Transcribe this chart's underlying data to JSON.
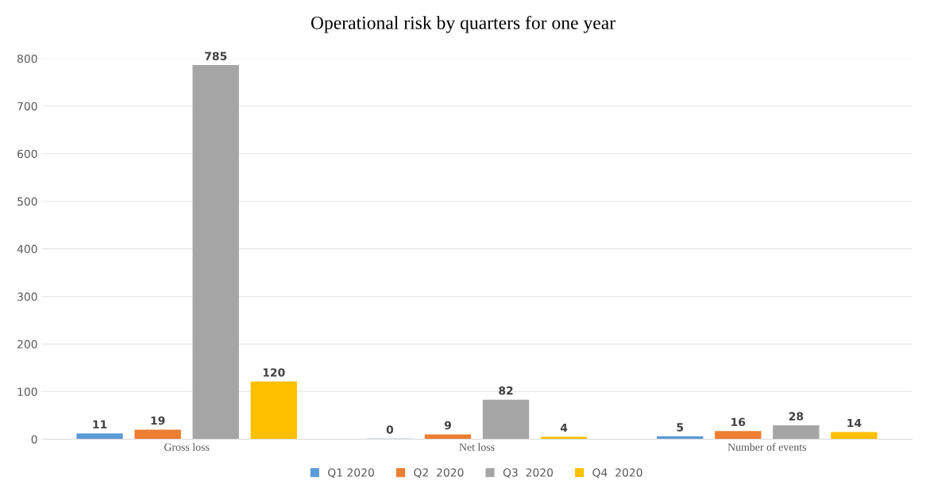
{
  "chart_data": {
    "type": "bar",
    "title": "Operational risk by quarters for one year",
    "categories": [
      "Gross loss",
      "Net loss",
      "Number of events"
    ],
    "series": [
      {
        "name": "Q1 2020",
        "color": "#5b9bd5",
        "values": [
          11,
          0,
          5
        ]
      },
      {
        "name": "Q2  2020",
        "color": "#ed7d31",
        "values": [
          19,
          9,
          16
        ]
      },
      {
        "name": "Q3  2020",
        "color": "#a5a5a5",
        "values": [
          785,
          82,
          28
        ]
      },
      {
        "name": "Q4  2020",
        "color": "#ffc000",
        "values": [
          120,
          4,
          14
        ]
      }
    ],
    "ylim": [
      0,
      800
    ],
    "yticks": [
      0,
      100,
      200,
      300,
      400,
      500,
      600,
      700,
      800
    ],
    "grid": "y",
    "legend": "bottom",
    "data_labels": true
  }
}
